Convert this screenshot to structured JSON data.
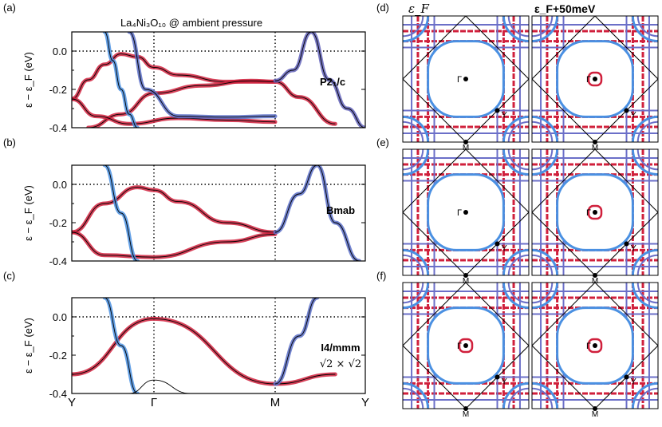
{
  "figure_title": "La₄Ni₃O₁₀ @ ambient pressure",
  "chart_data": [
    {
      "type": "line",
      "panel": "(a)",
      "title": "La₄Ni₃O₁₀ @ ambient pressure",
      "annotation": "P2₁/c",
      "ylabel": "ε − ε_F (eV)",
      "ylim": [
        -0.4,
        0.1
      ],
      "yticks": [
        "0.0",
        "-0.2",
        "-0.4"
      ],
      "xlabels": [
        "Y",
        "Γ",
        "M",
        "Y"
      ],
      "grid": "dotted lines at Γ, M and E_F",
      "series": [
        {
          "color": "#d0203c",
          "x": [
            0,
            0.1,
            0.2,
            0.3,
            0.4,
            0.5,
            0.6,
            0.8,
            1.0
          ],
          "y": [
            -0.25,
            -0.15,
            -0.07,
            -0.015,
            -0.03,
            -0.085,
            -0.125,
            -0.16,
            -0.16
          ]
        },
        {
          "color": "#d0203c",
          "x": [
            0.1,
            0.3,
            0.5,
            0.7,
            0.9,
            1.0,
            1.2,
            1.5
          ],
          "y": [
            -0.4,
            -0.33,
            -0.22,
            -0.18,
            -0.155,
            -0.16,
            -0.24,
            -0.38
          ]
        },
        {
          "color": "#d0203c",
          "x": [
            0,
            0.15,
            0.35,
            0.6,
            0.8,
            1.0
          ],
          "y": [
            -0.25,
            -0.34,
            -0.38,
            -0.35,
            -0.36,
            -0.37
          ]
        },
        {
          "color": "#4a90e2",
          "x": [
            0.2,
            0.25,
            0.3,
            0.35,
            0.4
          ],
          "y": [
            0.1,
            -0.05,
            -0.2,
            -0.33,
            -0.4
          ]
        },
        {
          "color": "#5a6fc8",
          "x": [
            0.35,
            0.45,
            0.6,
            0.8,
            1.0
          ],
          "y": [
            0.1,
            -0.2,
            -0.34,
            -0.345,
            -0.34
          ]
        },
        {
          "color": "#6060b8",
          "x": [
            1.0,
            1.15,
            1.3,
            1.45,
            1.6,
            1.75
          ],
          "y": [
            -0.155,
            -0.1,
            0.1,
            -0.15,
            -0.3,
            -0.4
          ]
        }
      ]
    },
    {
      "type": "line",
      "panel": "(b)",
      "annotation": "Bmab",
      "ylabel": "ε − ε_F (eV)",
      "ylim": [
        -0.4,
        0.1
      ],
      "yticks": [
        "0.0",
        "-0.2",
        "-0.4"
      ],
      "xlabels": [
        "Y",
        "Γ",
        "M",
        "Y"
      ],
      "series": [
        {
          "color": "#d0203c",
          "x": [
            0,
            0.2,
            0.4,
            0.5,
            0.6,
            0.8,
            1.0
          ],
          "y": [
            -0.25,
            -0.1,
            -0.015,
            -0.03,
            -0.09,
            -0.2,
            -0.25
          ]
        },
        {
          "color": "#d0203c",
          "x": [
            0,
            0.2,
            0.5,
            0.8,
            1.0
          ],
          "y": [
            -0.25,
            -0.37,
            -0.38,
            -0.3,
            -0.26
          ]
        },
        {
          "color": "#4a90e2",
          "x": [
            0.2,
            0.3,
            0.4
          ],
          "y": [
            0.1,
            -0.15,
            -0.4
          ]
        },
        {
          "color": "#5a6fc8",
          "x": [
            1.0,
            1.2,
            1.35,
            1.5,
            1.7
          ],
          "y": [
            -0.25,
            -0.05,
            0.1,
            -0.2,
            -0.4
          ]
        }
      ]
    },
    {
      "type": "line",
      "panel": "(c)",
      "annotation": "I4/mmm",
      "annotation2": "√2 × √2",
      "ylabel": "ε − ε_F (eV)",
      "ylim": [
        -0.4,
        0.1
      ],
      "yticks": [
        "0.0",
        "-0.2",
        "-0.4"
      ],
      "xlabels": [
        "Y",
        "Γ",
        "M",
        "Y"
      ],
      "series": [
        {
          "color": "#d0203c",
          "x": [
            0,
            0.5,
            1.0,
            1.5
          ],
          "y": [
            -0.3,
            -0.01,
            -0.35,
            -0.3
          ]
        },
        {
          "color": "#4a90e2",
          "x": [
            0.2,
            0.3,
            0.4
          ],
          "y": [
            0.1,
            -0.15,
            -0.4
          ]
        },
        {
          "color": "#5a6fc8",
          "x": [
            1.0,
            1.2,
            1.35
          ],
          "y": [
            -0.35,
            -0.1,
            0.1
          ]
        },
        {
          "color": "#000000",
          "x": [
            0.35,
            0.5,
            0.65
          ],
          "y": [
            -0.4,
            -0.33,
            -0.4
          ]
        }
      ]
    },
    {
      "type": "contour",
      "panel": "(d)",
      "column_labels": [
        "ε_F",
        "ε_F+50meV"
      ],
      "point_labels": [
        "Γ",
        "Y",
        "M"
      ],
      "colors": {
        "red": "#d0203c",
        "blue": "#4a90e2",
        "purple": "#6b6fc8"
      }
    },
    {
      "type": "contour",
      "panel": "(e)",
      "point_labels": [
        "Γ",
        "Y",
        "M"
      ]
    },
    {
      "type": "contour",
      "panel": "(f)",
      "point_labels": [
        "Γ",
        "Y",
        "M"
      ]
    }
  ]
}
